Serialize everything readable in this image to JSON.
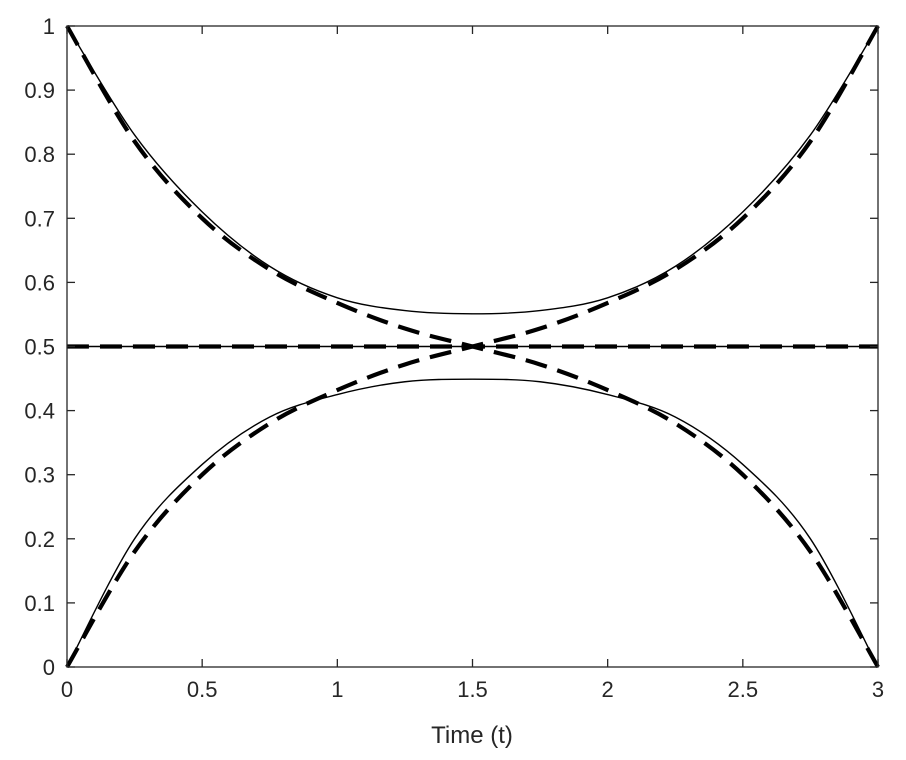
{
  "chart_data": {
    "type": "line",
    "title": "",
    "xlabel": "Time (t)",
    "ylabel": "",
    "xlim": [
      0,
      3
    ],
    "ylim": [
      0,
      1
    ],
    "xticks": [
      0,
      0.5,
      1,
      1.5,
      2,
      2.5,
      3
    ],
    "xtick_labels": [
      "0",
      "0.5",
      "1",
      "1.5",
      "2",
      "2.5",
      "3"
    ],
    "yticks": [
      0,
      0.1,
      0.2,
      0.3,
      0.4,
      0.5,
      0.6,
      0.7,
      0.8,
      0.9,
      1
    ],
    "ytick_labels": [
      "0",
      "0.1",
      "0.2",
      "0.3",
      "0.4",
      "0.5",
      "0.6",
      "0.7",
      "0.8",
      "0.9",
      "1"
    ],
    "grid": false,
    "box": true,
    "colors": {
      "lines": "#000000",
      "axes": "#262626"
    },
    "series": [
      {
        "style": "solid",
        "x": [
          0,
          0.25,
          0.5,
          0.75,
          1,
          1.25,
          1.5,
          1.75,
          2,
          2.25,
          2.5,
          2.75,
          3
        ],
        "y": [
          1,
          0.83,
          0.71,
          0.625,
          0.576,
          0.556,
          0.551,
          0.556,
          0.576,
          0.625,
          0.71,
          0.83,
          1
        ]
      },
      {
        "style": "solid",
        "x": [
          0,
          0.25,
          0.5,
          0.75,
          1,
          1.25,
          1.5,
          1.75,
          2,
          2.25,
          2.5,
          2.75,
          3
        ],
        "y": [
          0,
          0.2,
          0.316,
          0.39,
          0.425,
          0.445,
          0.449,
          0.445,
          0.425,
          0.39,
          0.316,
          0.2,
          0
        ]
      },
      {
        "style": "solid",
        "x": [
          0,
          0.5,
          1,
          1.5,
          2,
          2.5,
          3
        ],
        "y": [
          0.5,
          0.5,
          0.5,
          0.5,
          0.5,
          0.5,
          0.5
        ]
      },
      {
        "style": "dashed",
        "x": [
          0,
          0.25,
          0.5,
          0.75,
          1,
          1.25,
          1.5,
          1.75,
          2,
          2.25,
          2.5,
          2.75,
          3
        ],
        "y": [
          1,
          0.82,
          0.7,
          0.62,
          0.568,
          0.528,
          0.5,
          0.472,
          0.432,
          0.38,
          0.3,
          0.18,
          0
        ]
      },
      {
        "style": "dashed",
        "x": [
          0,
          0.25,
          0.5,
          0.75,
          1,
          1.25,
          1.5,
          1.75,
          2,
          2.25,
          2.5,
          2.75,
          3
        ],
        "y": [
          0,
          0.18,
          0.3,
          0.38,
          0.432,
          0.472,
          0.5,
          0.528,
          0.568,
          0.62,
          0.7,
          0.82,
          1
        ]
      },
      {
        "style": "dashed",
        "x": [
          0,
          0.5,
          1,
          1.5,
          2,
          2.5,
          3
        ],
        "y": [
          0.5,
          0.5,
          0.5,
          0.5,
          0.5,
          0.5,
          0.5
        ]
      }
    ]
  }
}
